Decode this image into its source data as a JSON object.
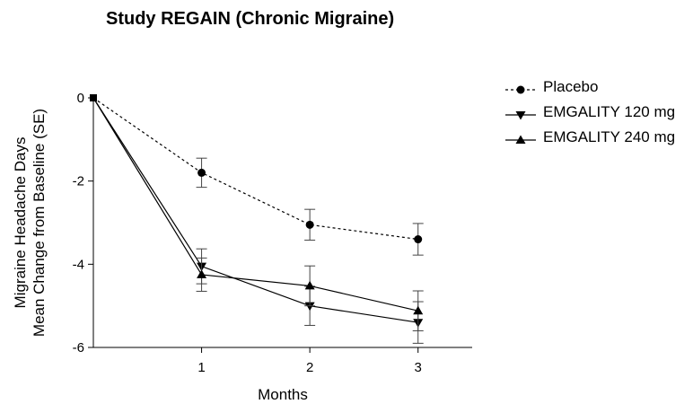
{
  "chart_data": {
    "type": "line",
    "title": "Study REGAIN (Chronic Migraine)",
    "xlabel": "Months",
    "ylabel": [
      "Migraine Headache Days",
      "Mean Change from Baseline (SE)"
    ],
    "x": [
      0,
      1,
      2,
      3
    ],
    "x_ticks": [
      "1",
      "2",
      "3"
    ],
    "y_ticks": [
      "0",
      "-2",
      "-4",
      "-6"
    ],
    "xlim": [
      0,
      3.5
    ],
    "ylim": [
      -6,
      0
    ],
    "grid": false,
    "legend_position": "right",
    "series": [
      {
        "name": "Placebo",
        "marker": "circle",
        "dash": "dotted",
        "values": [
          0,
          -1.8,
          -3.05,
          -3.4
        ],
        "err": [
          0,
          0.35,
          0.37,
          0.38
        ]
      },
      {
        "name": "EMGALITY 120 mg",
        "marker": "triangle-down",
        "dash": "solid",
        "values": [
          0,
          -4.05,
          -5.0,
          -5.4
        ],
        "err": [
          0,
          0.42,
          0.47,
          0.5
        ]
      },
      {
        "name": "EMGALITY 240 mg",
        "marker": "triangle-up",
        "dash": "solid",
        "values": [
          0,
          -4.25,
          -4.52,
          -5.12
        ],
        "err": [
          0,
          0.4,
          0.48,
          0.48
        ]
      }
    ]
  }
}
